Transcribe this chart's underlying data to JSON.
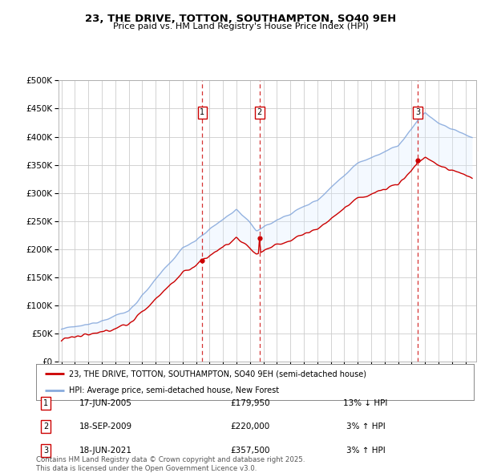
{
  "title": "23, THE DRIVE, TOTTON, SOUTHAMPTON, SO40 9EH",
  "subtitle": "Price paid vs. HM Land Registry's House Price Index (HPI)",
  "ylabel_ticks": [
    "£0",
    "£50K",
    "£100K",
    "£150K",
    "£200K",
    "£250K",
    "£300K",
    "£350K",
    "£400K",
    "£450K",
    "£500K"
  ],
  "ylim": [
    0,
    500000
  ],
  "ytick_vals": [
    0,
    50000,
    100000,
    150000,
    200000,
    250000,
    300000,
    350000,
    400000,
    450000,
    500000
  ],
  "xlim_start": 1994.8,
  "xlim_end": 2025.8,
  "sale_dates": [
    2005.46,
    2009.72,
    2021.46
  ],
  "sale_prices": [
    179950,
    220000,
    357500
  ],
  "sale_labels": [
    "1",
    "2",
    "3"
  ],
  "sale_label_info": [
    {
      "num": "1",
      "date": "17-JUN-2005",
      "price": "£179,950",
      "pct": "13% ↓ HPI"
    },
    {
      "num": "2",
      "date": "18-SEP-2009",
      "price": "£220,000",
      "pct": "3% ↑ HPI"
    },
    {
      "num": "3",
      "date": "18-JUN-2021",
      "price": "£357,500",
      "pct": "3% ↑ HPI"
    }
  ],
  "legend_line1": "23, THE DRIVE, TOTTON, SOUTHAMPTON, SO40 9EH (semi-detached house)",
  "legend_line2": "HPI: Average price, semi-detached house, New Forest",
  "line1_color": "#cc0000",
  "line2_color": "#88aadd",
  "fill_color": "#ddeeff",
  "grid_color": "#cccccc",
  "footnote": "Contains HM Land Registry data © Crown copyright and database right 2025.\nThis data is licensed under the Open Government Licence v3.0."
}
